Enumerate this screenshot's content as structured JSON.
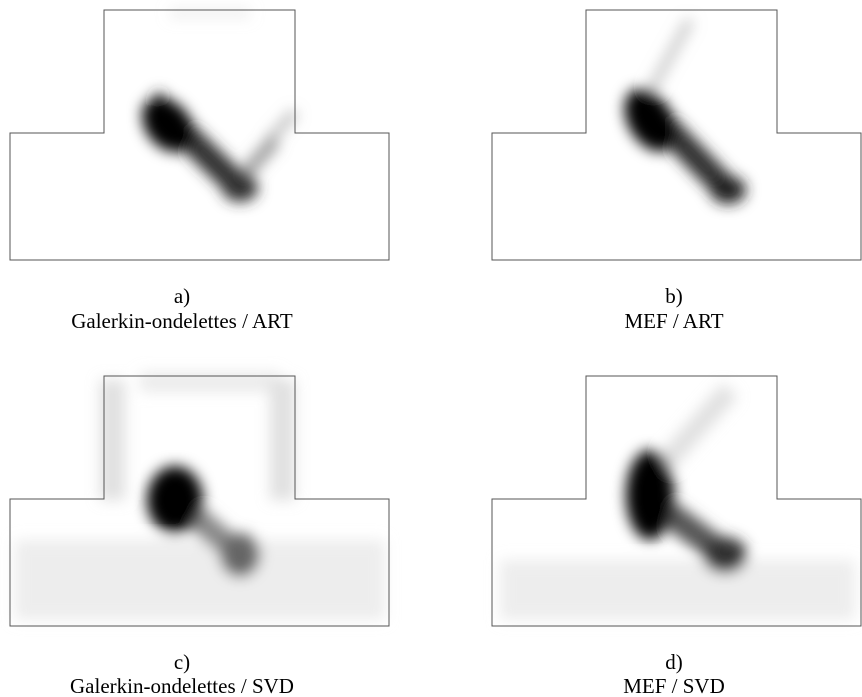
{
  "panels": [
    {
      "letter": "a)",
      "caption": "Galerkin-ondelettes / ART"
    },
    {
      "letter": "b)",
      "caption": "MEF / ART"
    },
    {
      "letter": "c)",
      "caption": "Galerkin-ondelettes / SVD"
    },
    {
      "letter": "d)",
      "caption": "MEF / SVD"
    }
  ]
}
